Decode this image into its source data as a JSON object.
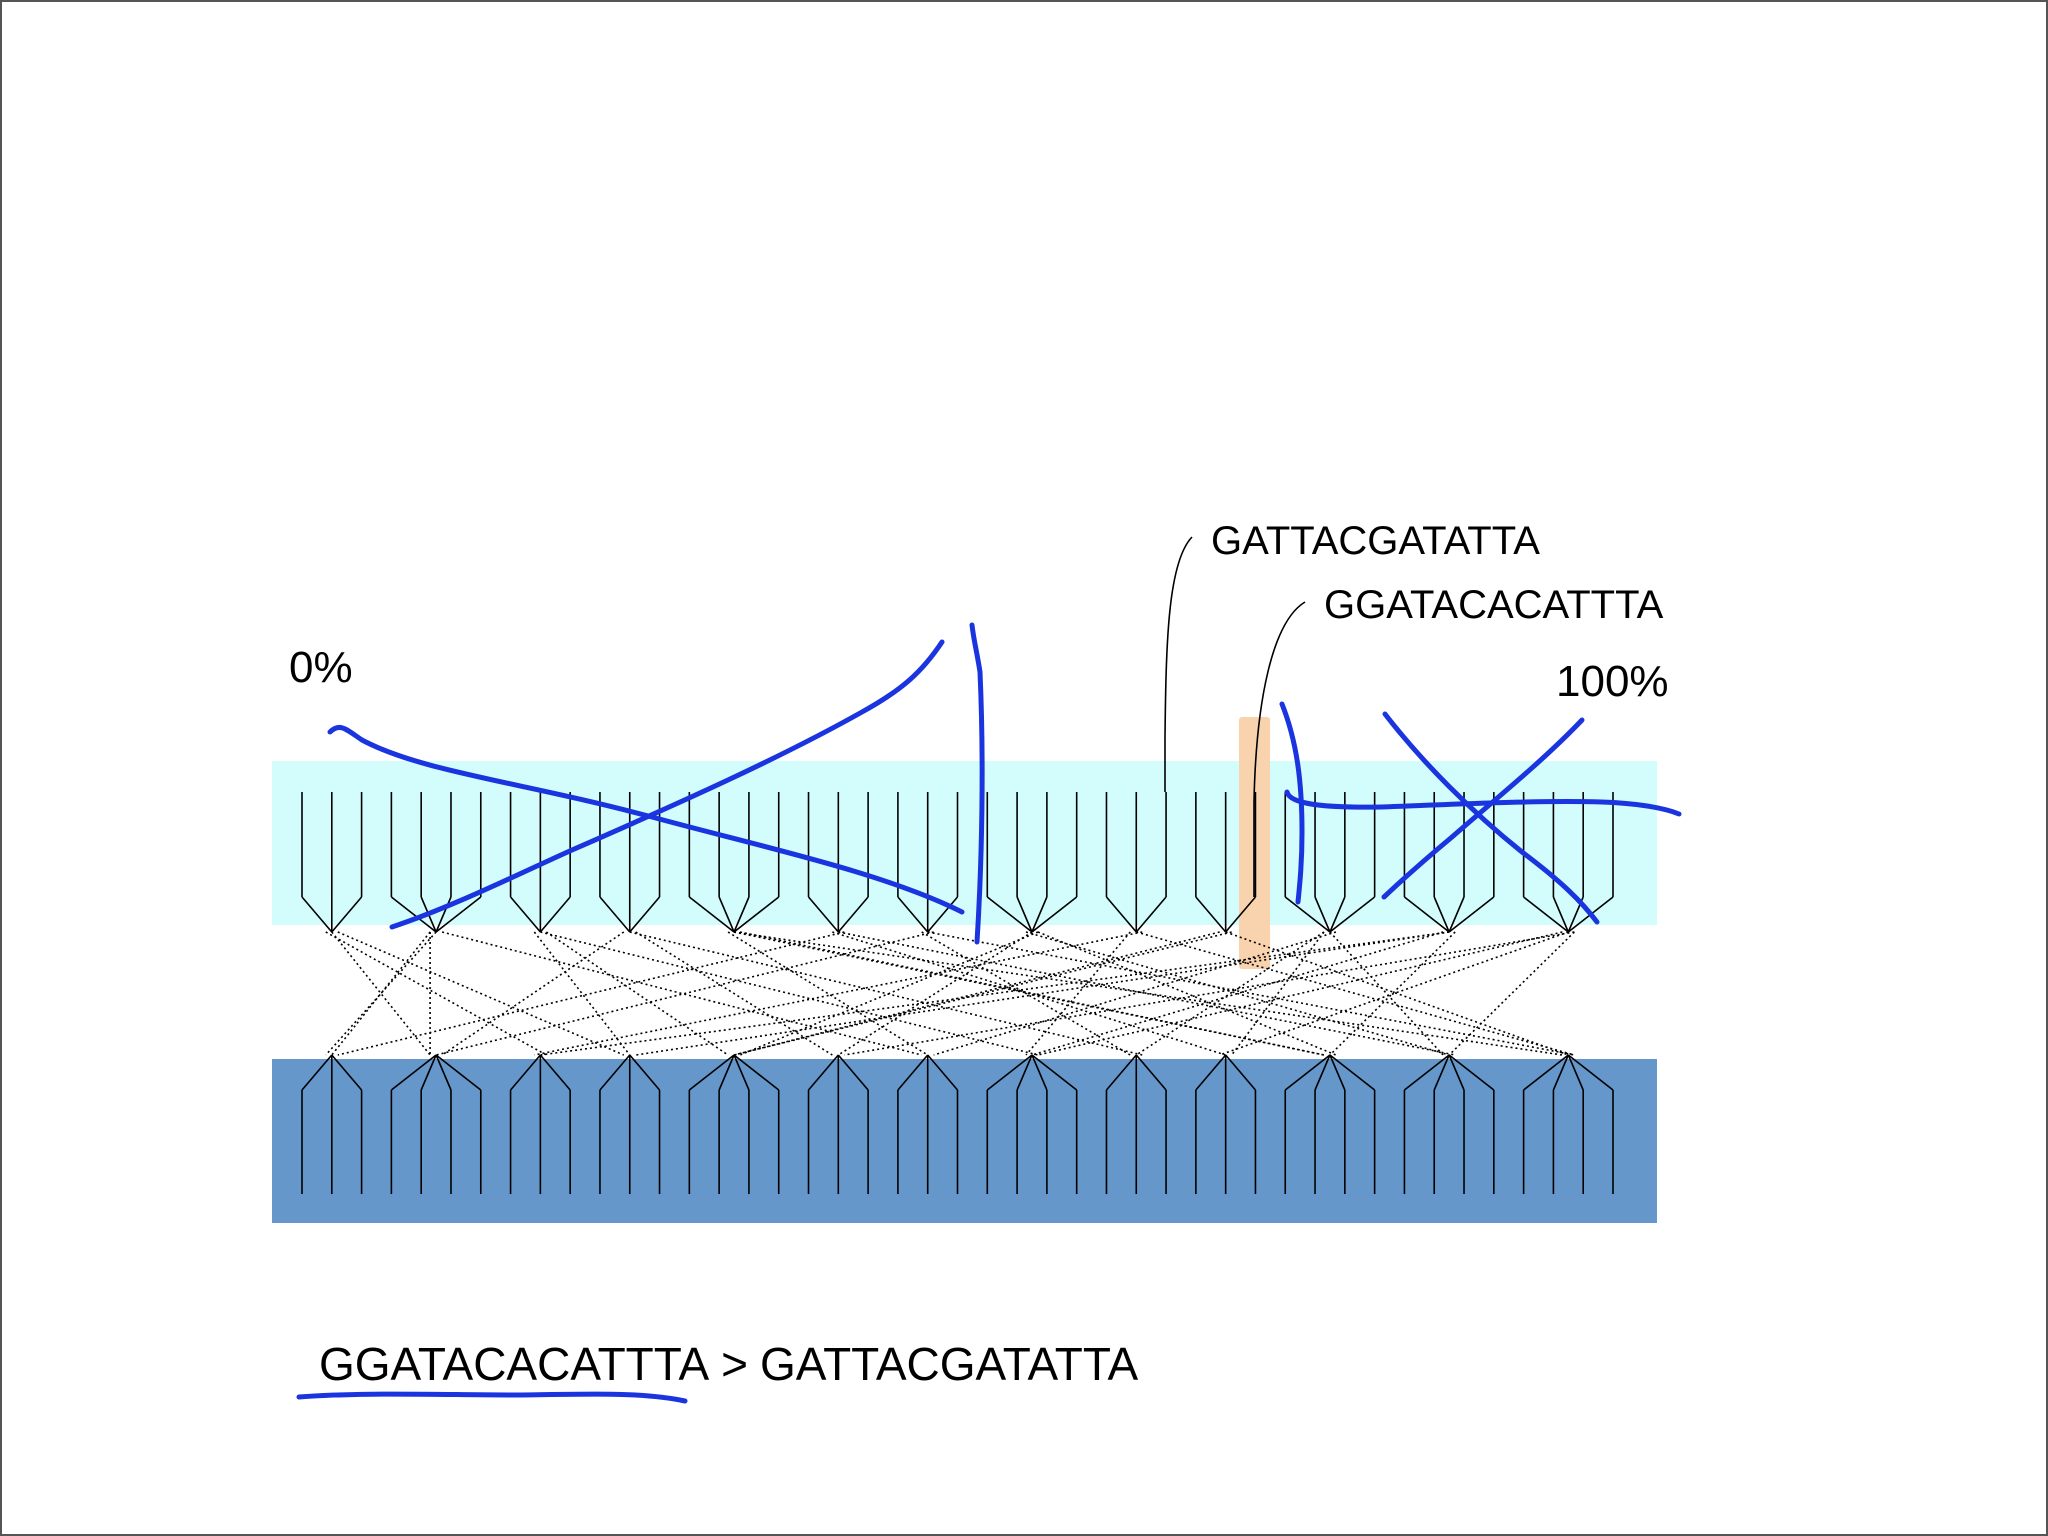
{
  "labels": {
    "pct_start": "0%",
    "pct_end": "100%",
    "seq_a": "GATTACGATATTA",
    "seq_b": "GGATACACATTTA",
    "comparison_left": "GGATACACATTTA",
    "comparison_op": ">",
    "comparison_right": "GATTACGATATTA"
  },
  "colors": {
    "top_band": "#d2fdfc",
    "bottom_band": "#6597cb",
    "highlight": "#f9d3ae",
    "ink": "#1a35e0"
  },
  "diagram": {
    "tick_count": 45,
    "highlighted_tick": 32,
    "seq_a_tick": 29,
    "top_groups": [
      [
        0,
        1,
        2
      ],
      [
        3,
        4,
        5,
        6
      ],
      [
        7,
        8,
        9
      ],
      [
        10,
        11,
        12
      ],
      [
        13,
        14,
        15,
        16
      ],
      [
        17,
        18,
        19
      ],
      [
        20,
        21,
        22
      ],
      [
        23,
        24,
        25,
        26
      ],
      [
        27,
        28,
        29
      ],
      [
        30,
        31,
        32
      ],
      [
        33,
        34,
        35,
        36
      ],
      [
        37,
        38,
        39,
        40
      ],
      [
        41,
        42,
        43,
        44
      ]
    ],
    "bottom_groups": [
      [
        0,
        1,
        2
      ],
      [
        3,
        4,
        5,
        6
      ],
      [
        7,
        8,
        9
      ],
      [
        10,
        11,
        12
      ],
      [
        13,
        14,
        15,
        16
      ],
      [
        17,
        18,
        19
      ],
      [
        20,
        21,
        22
      ],
      [
        23,
        24,
        25,
        26
      ],
      [
        27,
        28,
        29
      ],
      [
        30,
        31,
        32
      ],
      [
        33,
        34,
        35,
        36
      ],
      [
        37,
        38,
        39,
        40
      ],
      [
        41,
        42,
        43,
        44
      ]
    ],
    "links": [
      [
        0,
        8
      ],
      [
        1,
        3
      ],
      [
        2,
        12
      ],
      [
        3,
        6
      ],
      [
        4,
        0
      ],
      [
        5,
        21
      ],
      [
        6,
        1
      ],
      [
        7,
        26
      ],
      [
        8,
        15
      ],
      [
        9,
        10
      ],
      [
        10,
        29
      ],
      [
        11,
        18
      ],
      [
        12,
        5
      ],
      [
        13,
        33
      ],
      [
        14,
        36
      ],
      [
        15,
        22
      ],
      [
        16,
        42
      ],
      [
        17,
        2
      ],
      [
        18,
        31
      ],
      [
        19,
        38
      ],
      [
        20,
        4
      ],
      [
        21,
        27
      ],
      [
        22,
        44
      ],
      [
        23,
        14
      ],
      [
        24,
        40
      ],
      [
        25,
        19
      ],
      [
        26,
        35
      ],
      [
        27,
        24
      ],
      [
        28,
        41
      ],
      [
        29,
        9
      ],
      [
        30,
        16
      ],
      [
        31,
        43
      ],
      [
        32,
        13
      ],
      [
        33,
        28
      ],
      [
        34,
        39
      ],
      [
        35,
        20
      ],
      [
        36,
        32
      ],
      [
        37,
        11
      ],
      [
        38,
        34
      ],
      [
        39,
        25
      ],
      [
        40,
        7
      ],
      [
        41,
        37
      ],
      [
        42,
        23
      ],
      [
        43,
        30
      ],
      [
        44,
        17
      ]
    ]
  }
}
